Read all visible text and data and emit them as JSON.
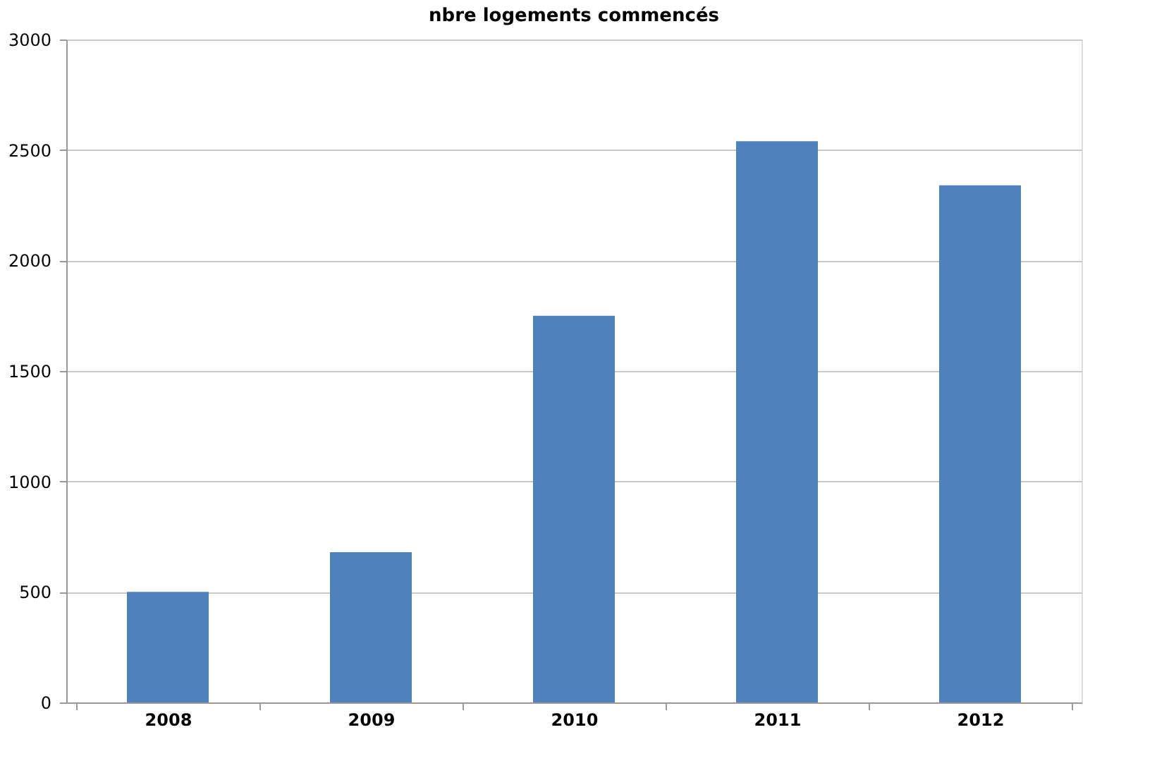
{
  "chart_data": {
    "type": "bar",
    "title": "nbre logements commencés",
    "categories": [
      "2008",
      "2009",
      "2010",
      "2011",
      "2012"
    ],
    "values": [
      500,
      680,
      1750,
      2540,
      2340
    ],
    "color": "#4f81bd",
    "ylim": [
      0,
      3000
    ],
    "yticks": [
      0,
      500,
      1000,
      1500,
      2000,
      2500,
      3000
    ],
    "grid": "y"
  }
}
